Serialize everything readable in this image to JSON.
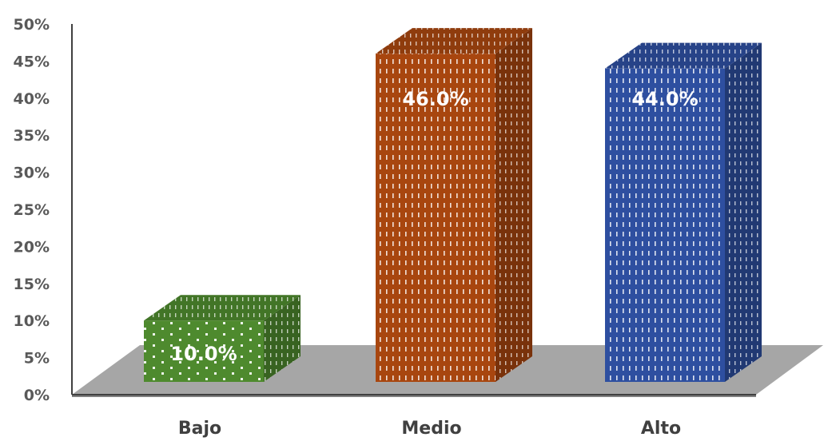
{
  "chart_data": {
    "type": "bar",
    "categories": [
      "Bajo",
      "Medio",
      "Alto"
    ],
    "values": [
      10.0,
      46.0,
      44.0
    ],
    "data_labels": [
      "10.0%",
      "46.0%",
      "44.0%"
    ],
    "colors": [
      "#4e8a2e",
      "#a8460f",
      "#2e4fa0"
    ],
    "ylim": [
      0,
      50
    ],
    "yticks": [
      0,
      5,
      10,
      15,
      20,
      25,
      30,
      35,
      40,
      45,
      50
    ],
    "ytick_labels": [
      "0%",
      "5%",
      "10%",
      "15%",
      "20%",
      "25%",
      "30%",
      "35%",
      "40%",
      "45%",
      "50%"
    ],
    "title": "",
    "xlabel": "",
    "ylabel": "",
    "grid": false,
    "legend": "none",
    "style": "3d"
  }
}
